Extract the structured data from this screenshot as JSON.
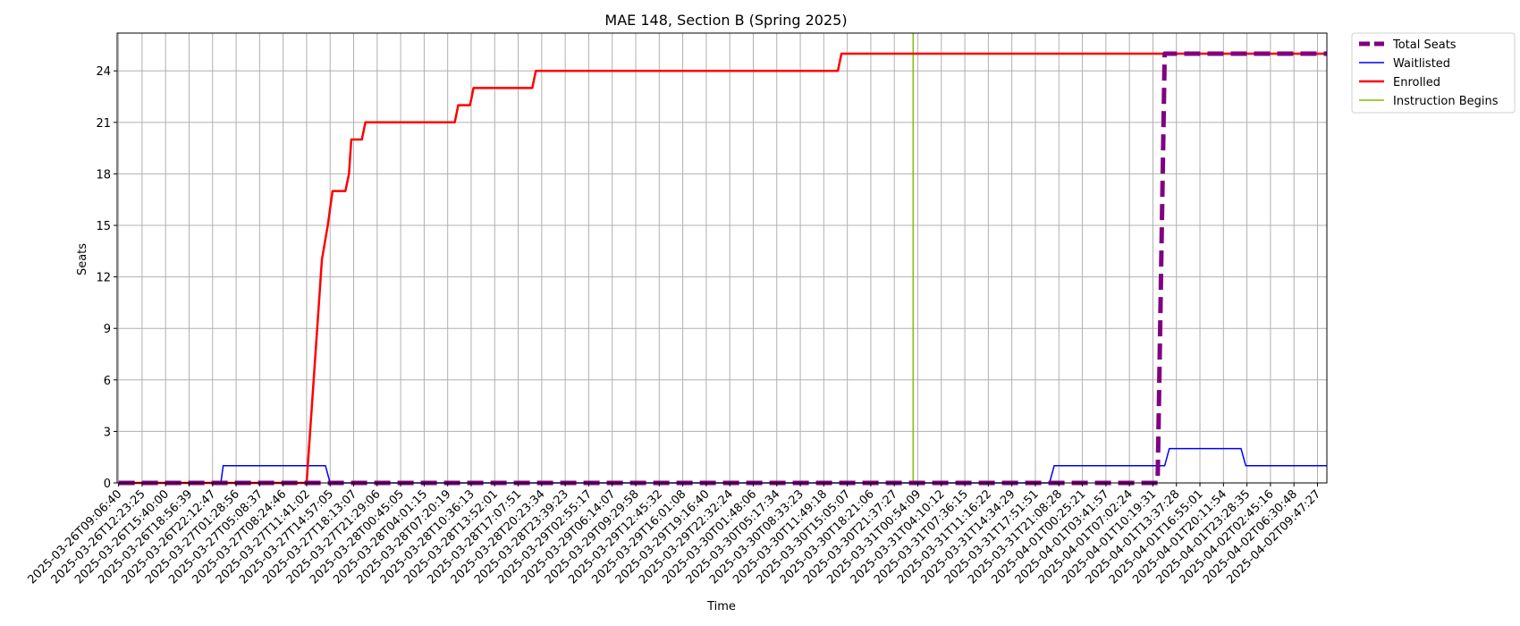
{
  "chart_data": {
    "type": "line",
    "title": "MAE 148, Section B (Spring 2025)",
    "xlabel": "Time",
    "ylabel": "Seats",
    "ylim": [
      0,
      26.2
    ],
    "yticks": [
      0,
      3,
      6,
      9,
      12,
      15,
      18,
      21,
      24
    ],
    "grid": true,
    "legend_position": "outside-top-right",
    "x_ticks": [
      "2025-03-26T09:06:40",
      "2025-03-26T12:23:25",
      "2025-03-26T15:40:00",
      "2025-03-26T18:56:39",
      "2025-03-26T22:12:47",
      "2025-03-27T01:28:56",
      "2025-03-27T05:08:37",
      "2025-03-27T08:24:46",
      "2025-03-27T11:41:02",
      "2025-03-27T14:57:05",
      "2025-03-27T18:13:07",
      "2025-03-27T21:29:06",
      "2025-03-28T00:45:05",
      "2025-03-28T04:01:15",
      "2025-03-28T07:20:19",
      "2025-03-28T10:36:13",
      "2025-03-28T13:52:01",
      "2025-03-28T17:07:51",
      "2025-03-28T20:23:34",
      "2025-03-28T23:39:23",
      "2025-03-29T02:55:17",
      "2025-03-29T06:14:07",
      "2025-03-29T09:29:58",
      "2025-03-29T12:45:32",
      "2025-03-29T16:01:08",
      "2025-03-29T19:16:40",
      "2025-03-29T22:32:24",
      "2025-03-30T01:48:06",
      "2025-03-30T05:17:34",
      "2025-03-30T08:33:23",
      "2025-03-30T11:49:18",
      "2025-03-30T15:05:07",
      "2025-03-30T18:21:06",
      "2025-03-30T21:37:27",
      "2025-03-31T00:54:09",
      "2025-03-31T04:10:12",
      "2025-03-31T07:36:15",
      "2025-03-31T11:16:22",
      "2025-03-31T14:34:29",
      "2025-03-31T17:51:51",
      "2025-03-31T21:08:28",
      "2025-04-01T00:25:21",
      "2025-04-01T03:41:57",
      "2025-04-01T07:02:24",
      "2025-04-01T10:19:31",
      "2025-04-01T13:37:28",
      "2025-04-01T16:55:01",
      "2025-04-01T20:11:54",
      "2025-04-01T23:28:35",
      "2025-04-02T02:45:16",
      "2025-04-02T06:30:48",
      "2025-04-02T09:47:27"
    ],
    "series": [
      {
        "name": "Total Seats",
        "color": "#800080",
        "style": "dashed",
        "points": [
          [
            0,
            0
          ],
          [
            44.2,
            0
          ],
          [
            44.5,
            25
          ],
          [
            51.4,
            25
          ]
        ]
      },
      {
        "name": "Waitlisted",
        "color": "#0000ff",
        "style": "solid",
        "points": [
          [
            0,
            0
          ],
          [
            4.35,
            0
          ],
          [
            4.45,
            1
          ],
          [
            8.8,
            1
          ],
          [
            9.0,
            0
          ],
          [
            39.6,
            0
          ],
          [
            39.8,
            1
          ],
          [
            44.5,
            1
          ],
          [
            44.7,
            2
          ],
          [
            47.75,
            2
          ],
          [
            47.95,
            1
          ],
          [
            51.4,
            1
          ]
        ]
      },
      {
        "name": "Enrolled",
        "color": "#ff0000",
        "style": "solid",
        "points": [
          [
            0,
            0
          ],
          [
            8.0,
            0
          ],
          [
            8.5,
            10
          ],
          [
            8.65,
            13
          ],
          [
            8.9,
            15
          ],
          [
            9.1,
            17
          ],
          [
            9.65,
            17
          ],
          [
            9.8,
            18
          ],
          [
            9.9,
            20
          ],
          [
            10.35,
            20
          ],
          [
            10.5,
            21
          ],
          [
            14.3,
            21
          ],
          [
            14.45,
            22
          ],
          [
            14.95,
            22
          ],
          [
            15.1,
            23
          ],
          [
            17.6,
            23
          ],
          [
            17.75,
            24
          ],
          [
            30.6,
            24
          ],
          [
            30.75,
            25
          ],
          [
            51.4,
            25
          ]
        ]
      },
      {
        "name": "Instruction Begins",
        "color": "#7fbf00",
        "style": "solid",
        "points": [
          [
            33.8,
            0
          ],
          [
            33.8,
            26.2
          ]
        ]
      }
    ]
  }
}
